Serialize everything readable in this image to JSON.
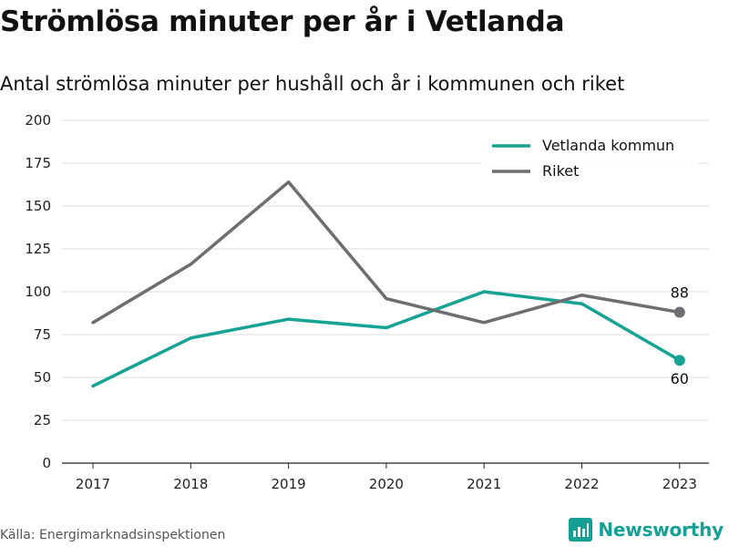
{
  "title": "Strömlösa minuter per år i Vetlanda",
  "subtitle": "Antal strömlösa minuter per hushåll och år i kommunen och riket",
  "source": "Källa: Energimarknadsinspektionen",
  "brand": "Newsworthy",
  "colors": {
    "vetlanda": "#16a394",
    "riket": "#6d6d72",
    "brand": "#15a095",
    "grid": "#dddddd"
  },
  "chart_data": {
    "type": "line",
    "x": [
      "2017",
      "2018",
      "2019",
      "2020",
      "2021",
      "2022",
      "2023"
    ],
    "ylim": [
      0,
      200
    ],
    "yticks": [
      0,
      25,
      50,
      75,
      100,
      125,
      150,
      175,
      200
    ],
    "grid": true,
    "legend": "top-right",
    "series": [
      {
        "name": "Vetlanda kommun",
        "values": [
          45,
          73,
          84,
          79,
          100,
          93,
          60
        ],
        "end_label": "60"
      },
      {
        "name": "Riket",
        "values": [
          82,
          116,
          164,
          96,
          82,
          98,
          88
        ],
        "end_label": "88"
      }
    ]
  }
}
